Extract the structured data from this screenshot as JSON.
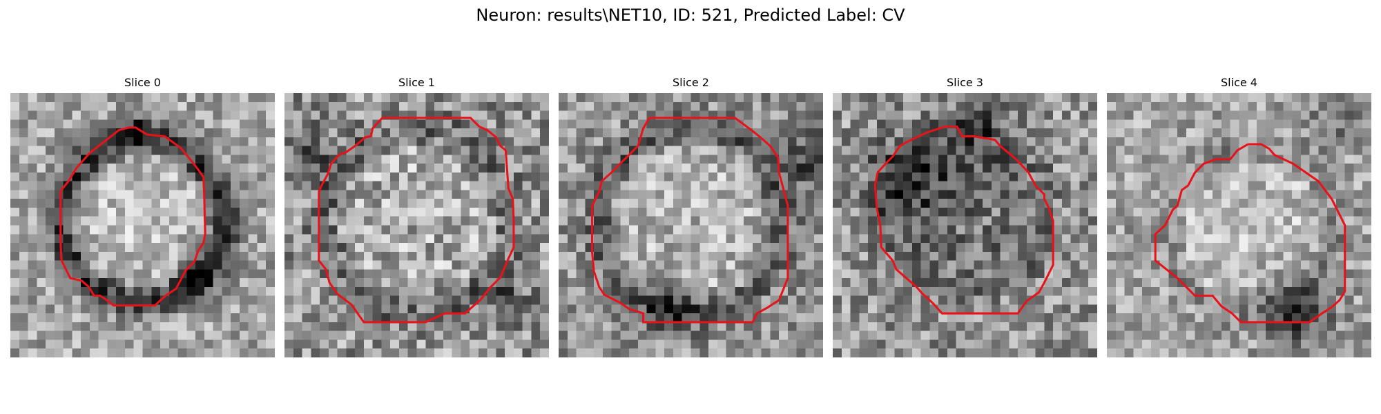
{
  "figure": {
    "title": "Neuron: results\\NET10, ID: 521, Predicted Label: CV",
    "outline_color": "#e8121a"
  },
  "slices": [
    {
      "title": "Slice 0",
      "ring": "dark-ring-outline",
      "image": "grayscale-microscopy-patch"
    },
    {
      "title": "Slice 1",
      "ring": "faint",
      "image": "grayscale-microscopy-patch"
    },
    {
      "title": "Slice 2",
      "ring": "faint-dark-edges",
      "image": "grayscale-microscopy-patch"
    },
    {
      "title": "Slice 3",
      "ring": "dark-filled-top",
      "image": "grayscale-microscopy-patch"
    },
    {
      "title": "Slice 4",
      "ring": "dark-bottom-blob",
      "image": "grayscale-microscopy-patch"
    }
  ]
}
